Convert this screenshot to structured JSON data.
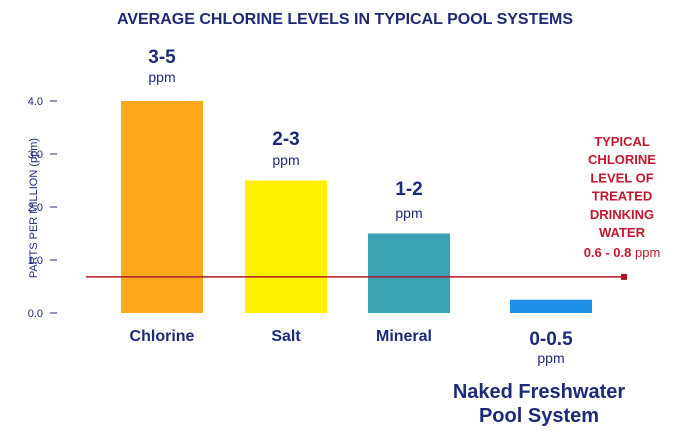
{
  "chart_data": {
    "type": "bar",
    "title": "AVERAGE CHLORINE LEVELS IN TYPICAL POOL SYSTEMS",
    "ylabel": "PARTS PER MILLION (ppm)",
    "ylim": [
      0,
      4.0
    ],
    "yticks": [
      "0.0",
      "1.0",
      "2.0",
      "3.0",
      "4.0"
    ],
    "grid": false,
    "categories": [
      "Chlorine",
      "Salt",
      "Mineral",
      ""
    ],
    "values": [
      4.0,
      2.5,
      1.5,
      0.25
    ],
    "colors": [
      "#fba81a",
      "#fff200",
      "#3ba3b1",
      "#1e90e6"
    ],
    "labels": [
      {
        "range": "3-5",
        "unit": "ppm"
      },
      {
        "range": "2-3",
        "unit": "ppm"
      },
      {
        "range": "1-2",
        "unit": "ppm"
      },
      {
        "range": "0-0.5",
        "unit": "ppm"
      }
    ],
    "system_label": [
      "Naked Freshwater",
      "Pool System"
    ],
    "reference_line": {
      "value": 0.7,
      "color": "#b0182a",
      "label_lines": [
        "TYPICAL",
        "CHLORINE",
        "LEVEL OF",
        "TREATED",
        "DRINKING",
        "WATER"
      ],
      "label_range": "0.6 - 0.8",
      "label_unit": "ppm"
    }
  }
}
